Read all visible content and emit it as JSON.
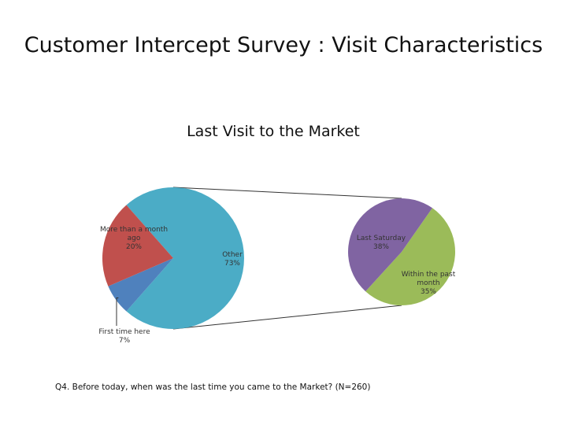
{
  "slide": {
    "title": "Customer Intercept Survey : Visit Characteristics",
    "footnote": "Q4.  Before today, when was the last time you came to the Market? (N=260)"
  },
  "chart_data": {
    "type": "pie",
    "title": "Last Visit to the Market",
    "subtype": "pie-of-pie",
    "main_pie": [
      {
        "name": "Other",
        "value": 73,
        "label_lines": [
          "Other",
          "73%"
        ],
        "color": "#4BACC6"
      },
      {
        "name": "First time here",
        "value": 7,
        "label_lines": [
          "First time here",
          "7%"
        ],
        "color": "#4F81BD"
      },
      {
        "name": "More than a month ago",
        "value": 20,
        "label_lines": [
          "More than a month",
          "ago",
          "20%"
        ],
        "color": "#C0504D"
      }
    ],
    "secondary_pie": [
      {
        "name": "Last Saturday",
        "value": 38,
        "label_lines": [
          "Last Saturday",
          "38%"
        ],
        "color": "#9BBB59"
      },
      {
        "name": "Within the past month",
        "value": 35,
        "label_lines": [
          "Within the past",
          "month",
          "35%"
        ],
        "color": "#8064A2"
      }
    ],
    "legend": "none"
  }
}
